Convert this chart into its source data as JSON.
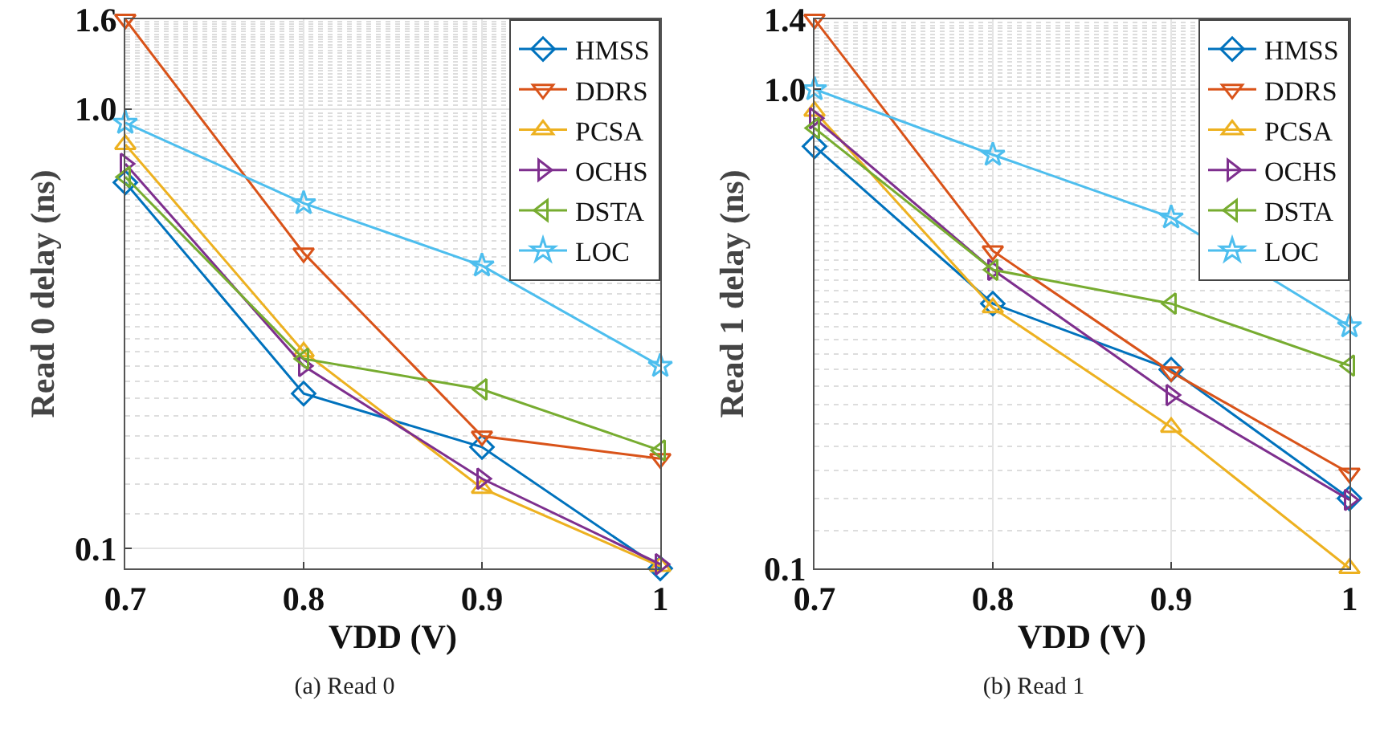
{
  "chart_data": [
    {
      "type": "line",
      "xlabel": "VDD (V)",
      "ylabel": "Read 0 delay (ns)",
      "x": [
        0.7,
        0.8,
        0.9,
        1
      ],
      "xlim": [
        0.7,
        1
      ],
      "xticks": [
        0.7,
        0.8,
        0.9,
        1
      ],
      "ylim": [
        0.09,
        1.6
      ],
      "yticks": [
        0.1,
        {
          "value": 1,
          "label": "1.0"
        },
        1.6
      ],
      "log": true,
      "grid": true,
      "legend": "top right",
      "annotations": [
        "(a) Read 0"
      ],
      "series": [
        {
          "name": "HMSS",
          "color": "#0072bd",
          "marker": "diamond",
          "values": [
            0.68,
            0.225,
            0.17,
            0.09
          ]
        },
        {
          "name": "DDRS",
          "color": "#d95319",
          "marker": "triangle",
          "values": [
            1.6,
            0.47,
            0.18,
            0.16
          ]
        },
        {
          "name": "PCSA",
          "color": "#edb120",
          "marker": "triangle",
          "values": [
            0.83,
            0.28,
            0.137,
            0.091
          ]
        },
        {
          "name": "OCHS",
          "color": "#7e2f8e",
          "marker": "triangle",
          "values": [
            0.75,
            0.26,
            0.144,
            0.092
          ]
        },
        {
          "name": "DSTA",
          "color": "#77ac30",
          "marker": "triangle",
          "values": [
            0.7,
            0.27,
            0.23,
            0.167
          ]
        },
        {
          "name": "LOC",
          "color": "#4dbeee",
          "marker": "star",
          "values": [
            0.93,
            0.61,
            0.44,
            0.26
          ]
        }
      ]
    },
    {
      "type": "line",
      "xlabel": "VDD (V)",
      "ylabel": "Read 1 delay (ns)",
      "x": [
        0.7,
        0.8,
        0.9,
        1
      ],
      "xlim": [
        0.7,
        1
      ],
      "xticks": [
        0.7,
        0.8,
        0.9,
        1
      ],
      "ylim": [
        0.1,
        1.4
      ],
      "yticks": [
        0.1,
        {
          "value": 1,
          "label": "1.0"
        },
        1.4
      ],
      "log": true,
      "grid": true,
      "legend": "top right",
      "annotations": [
        "(b) Read 1"
      ],
      "series": [
        {
          "name": "HMSS",
          "color": "#0072bd",
          "marker": "diamond",
          "values": [
            0.76,
            0.357,
            0.26,
            0.14
          ]
        },
        {
          "name": "DDRS",
          "color": "#d95319",
          "marker": "triangle",
          "values": [
            1.4,
            0.46,
            0.257,
            0.158
          ]
        },
        {
          "name": "PCSA",
          "color": "#edb120",
          "marker": "triangle",
          "values": [
            0.9,
            0.35,
            0.197,
            0.1
          ]
        },
        {
          "name": "OCHS",
          "color": "#7e2f8e",
          "marker": "triangle",
          "values": [
            0.87,
            0.42,
            0.23,
            0.139
          ]
        },
        {
          "name": "DSTA",
          "color": "#77ac30",
          "marker": "triangle",
          "values": [
            0.83,
            0.42,
            0.357,
            0.265
          ]
        },
        {
          "name": "LOC",
          "color": "#4dbeee",
          "marker": "star",
          "values": [
            1,
            0.73,
            0.54,
            0.32
          ]
        }
      ]
    }
  ]
}
